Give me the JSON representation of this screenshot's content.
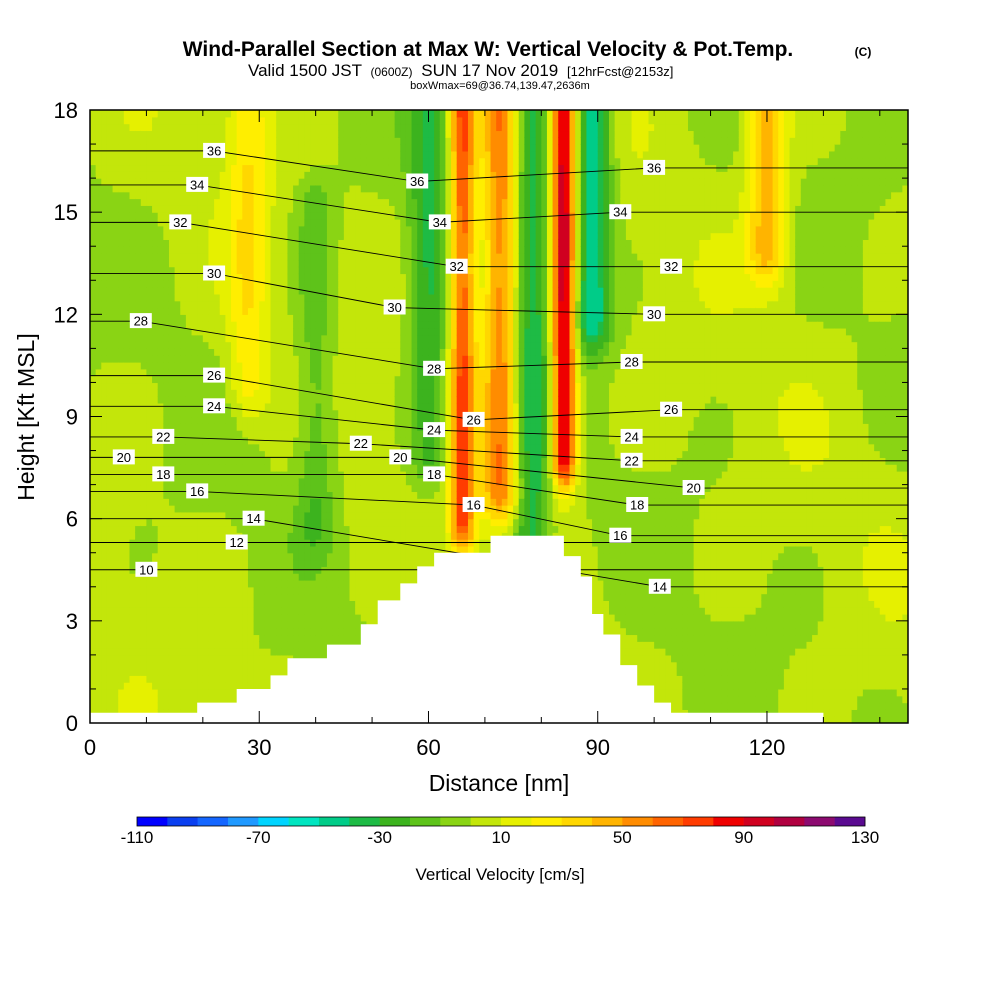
{
  "title": "Wind-Parallel Section at Max W: Vertical Velocity & Pot.Temp.",
  "title_mark": "(C)",
  "subtitle": {
    "valid": "Valid 1500 JST",
    "utc": "(0600Z)",
    "date": "SUN 17 Nov 2019",
    "fcst": "[12hrFcst@2153z]"
  },
  "info_line": "boxWmax=69@36.74,139.47,2636m",
  "colors": {
    "palette": [
      "#0000ff",
      "#0a3ff0",
      "#1466ff",
      "#1f99ff",
      "#00d4ff",
      "#00e5c0",
      "#00cc88",
      "#1ebb45",
      "#3cb31e",
      "#5ec31a",
      "#8ad414",
      "#c3e60a",
      "#e6f000",
      "#ffee00",
      "#ffd700",
      "#ffb400",
      "#ff8c00",
      "#ff6400",
      "#ff3c00",
      "#ef0000",
      "#d00020",
      "#b00040",
      "#8c0a70",
      "#5a0a90"
    ],
    "terrain": "#ffffff"
  },
  "chart_data": {
    "type": "heatmap",
    "xlabel": "Distance [nm]",
    "ylabel": "Height [Kft MSL]",
    "xlim": [
      0,
      145
    ],
    "ylim": [
      0,
      18
    ],
    "x_ticks": [
      "0",
      "30",
      "60",
      "90",
      "120"
    ],
    "y_ticks": [
      "0",
      "3",
      "6",
      "9",
      "12",
      "15",
      "18"
    ],
    "colorbar": {
      "label": "Vertical Velocity [cm/s]",
      "tick_labels": [
        "-110",
        "-70",
        "-30",
        "10",
        "50",
        "90",
        "130"
      ],
      "min": -110,
      "max": 130,
      "step": 10
    },
    "terrain_profile": {
      "x": [
        0,
        19,
        19,
        26,
        26,
        32,
        32,
        35,
        35,
        42,
        42,
        48,
        48,
        51,
        51,
        55,
        55,
        58,
        58,
        61,
        61,
        65,
        65,
        71,
        71,
        75,
        75,
        79,
        79,
        84,
        84,
        87,
        87,
        89,
        89,
        91,
        91,
        94,
        94,
        97,
        97,
        100,
        100,
        103,
        103,
        130,
        130,
        145
      ],
      "y": [
        0.3,
        0.3,
        0.6,
        0.6,
        1.0,
        1.0,
        1.4,
        1.4,
        1.9,
        1.9,
        2.3,
        2.3,
        2.9,
        2.9,
        3.6,
        3.6,
        4.1,
        4.1,
        4.6,
        4.6,
        5.0,
        5.0,
        5.0,
        5.0,
        5.5,
        5.5,
        5.5,
        5.5,
        5.5,
        5.5,
        4.9,
        4.9,
        4.3,
        4.3,
        3.2,
        3.2,
        2.6,
        2.6,
        1.7,
        1.7,
        1.1,
        1.1,
        0.6,
        0.6,
        0.3,
        0.3,
        0.0,
        0.0
      ]
    },
    "velocity_features": [
      {
        "x": 66,
        "y0": 6,
        "y1": 18,
        "peak": 70
      },
      {
        "x": 73,
        "y0": 7,
        "y1": 18,
        "peak": 60
      },
      {
        "x": 78,
        "y0": 5.5,
        "y1": 18,
        "peak": -40
      },
      {
        "x": 84,
        "y0": 8,
        "y1": 18,
        "peak": 100
      },
      {
        "x": 89,
        "y0": 12,
        "y1": 18,
        "peak": -50
      },
      {
        "x": 60,
        "y0": 8,
        "y1": 18,
        "peak": -30
      },
      {
        "x": 28,
        "y0": 10,
        "y1": 18,
        "peak": 25
      },
      {
        "x": 120,
        "y0": 14,
        "y1": 18,
        "peak": 45
      },
      {
        "x": 40,
        "y0": 6,
        "y1": 15,
        "peak": -20
      }
    ],
    "pot_temp_contour_labels": [
      {
        "value": "36",
        "x": 22,
        "y": 16.8
      },
      {
        "value": "34",
        "x": 19,
        "y": 15.8
      },
      {
        "value": "32",
        "x": 16,
        "y": 14.7
      },
      {
        "value": "30",
        "x": 22,
        "y": 13.2
      },
      {
        "value": "28",
        "x": 9,
        "y": 11.8
      },
      {
        "value": "26",
        "x": 22,
        "y": 10.2
      },
      {
        "value": "24",
        "x": 22,
        "y": 9.3
      },
      {
        "value": "22",
        "x": 13,
        "y": 8.4
      },
      {
        "value": "20",
        "x": 6,
        "y": 7.8
      },
      {
        "value": "18",
        "x": 13,
        "y": 7.3
      },
      {
        "value": "16",
        "x": 19,
        "y": 6.8
      },
      {
        "value": "14",
        "x": 29,
        "y": 6.0
      },
      {
        "value": "12",
        "x": 26,
        "y": 5.3
      },
      {
        "value": "10",
        "x": 10,
        "y": 4.5
      },
      {
        "value": "36",
        "x": 58,
        "y": 15.9
      },
      {
        "value": "34",
        "x": 62,
        "y": 14.7
      },
      {
        "value": "32",
        "x": 65,
        "y": 13.4
      },
      {
        "value": "30",
        "x": 54,
        "y": 12.2
      },
      {
        "value": "28",
        "x": 61,
        "y": 10.4
      },
      {
        "value": "26",
        "x": 68,
        "y": 8.9
      },
      {
        "value": "24",
        "x": 61,
        "y": 8.6
      },
      {
        "value": "22",
        "x": 48,
        "y": 8.2
      },
      {
        "value": "20",
        "x": 55,
        "y": 7.8
      },
      {
        "value": "18",
        "x": 61,
        "y": 7.3
      },
      {
        "value": "16",
        "x": 68,
        "y": 6.4
      },
      {
        "value": "36",
        "x": 100,
        "y": 16.3
      },
      {
        "value": "34",
        "x": 94,
        "y": 15.0
      },
      {
        "value": "32",
        "x": 103,
        "y": 13.4
      },
      {
        "value": "30",
        "x": 100,
        "y": 12.0
      },
      {
        "value": "28",
        "x": 96,
        "y": 10.6
      },
      {
        "value": "26",
        "x": 103,
        "y": 9.2
      },
      {
        "value": "24",
        "x": 96,
        "y": 8.4
      },
      {
        "value": "22",
        "x": 96,
        "y": 7.7
      },
      {
        "value": "20",
        "x": 107,
        "y": 6.9
      },
      {
        "value": "18",
        "x": 97,
        "y": 6.4
      },
      {
        "value": "16",
        "x": 94,
        "y": 5.5
      },
      {
        "value": "14",
        "x": 101,
        "y": 4.0
      }
    ]
  }
}
